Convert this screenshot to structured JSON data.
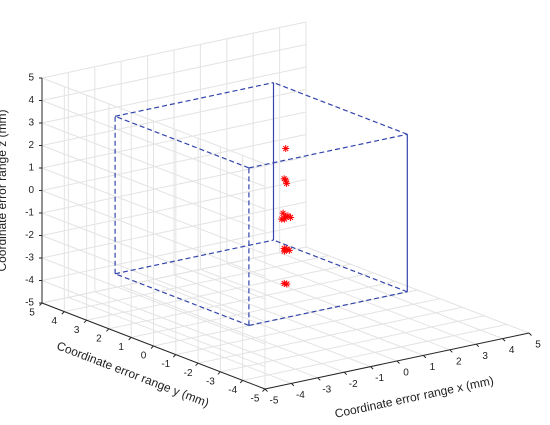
{
  "chart_data": {
    "type": "scatter3d",
    "xlabel": "Coordinate error range x (mm)",
    "ylabel": "Coordinate error range y (mm)",
    "zlabel": "Coordinate error range z (mm)",
    "xlim": [
      -5,
      5
    ],
    "ylim": [
      -5,
      5
    ],
    "zlim": [
      -5,
      5
    ],
    "xticks": [
      "-5",
      "-4",
      "-3",
      "-2",
      "-1",
      "0",
      "1",
      "2",
      "3",
      "4",
      "5"
    ],
    "yticks": [
      "-5",
      "-4",
      "-3",
      "-2",
      "-1",
      "0",
      "1",
      "2",
      "3",
      "4",
      "5"
    ],
    "zticks": [
      "-5",
      "-4",
      "-3",
      "-2",
      "-1",
      "0",
      "1",
      "2",
      "3",
      "4",
      "5"
    ],
    "grid": true,
    "box": {
      "x": [
        -3.5,
        2.5
      ],
      "y": [
        -2.5,
        3.5
      ],
      "z": [
        -3.5,
        3.5
      ],
      "color": "#3344AA",
      "style": "dashed"
    },
    "series": [
      {
        "marker": "*",
        "color": "#FF0000",
        "points": [
          {
            "x": 0.05,
            "y": 0.05,
            "z": 2.5
          },
          {
            "x": -0.05,
            "y": 0.0,
            "z": 1.2
          },
          {
            "x": 0.05,
            "y": 0.05,
            "z": 1.1
          },
          {
            "x": 0.0,
            "y": -0.05,
            "z": 1.0
          },
          {
            "x": -0.05,
            "y": 0.05,
            "z": -0.35
          },
          {
            "x": 0.05,
            "y": -0.05,
            "z": -0.45
          },
          {
            "x": 0.0,
            "y": 0.0,
            "z": -0.5
          },
          {
            "x": 0.15,
            "y": -0.05,
            "z": -0.55
          },
          {
            "x": -0.1,
            "y": 0.05,
            "z": -0.6
          },
          {
            "x": 0.05,
            "y": 0.1,
            "z": -0.65
          },
          {
            "x": -0.05,
            "y": 0.0,
            "z": -1.9
          },
          {
            "x": 0.05,
            "y": 0.0,
            "z": -1.95
          },
          {
            "x": 0.1,
            "y": -0.05,
            "z": -2.0
          },
          {
            "x": 0.0,
            "y": 0.05,
            "z": -2.05
          },
          {
            "x": -0.05,
            "y": 0.0,
            "z": -3.45
          },
          {
            "x": 0.05,
            "y": 0.0,
            "z": -3.5
          }
        ]
      }
    ]
  }
}
